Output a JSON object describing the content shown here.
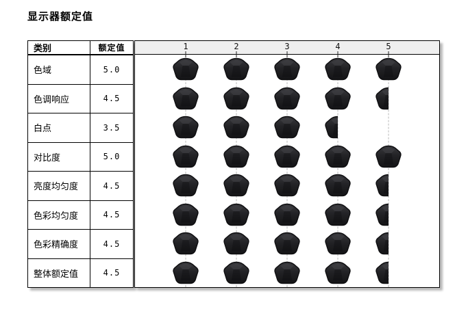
{
  "title": "显示器额定值",
  "table": {
    "headers": {
      "category": "类别",
      "rating": "额定值"
    },
    "rows": [
      {
        "label": "色域",
        "value": "5.0",
        "rating": 5.0
      },
      {
        "label": "色调响应",
        "value": "4.5",
        "rating": 4.5
      },
      {
        "label": "白点",
        "value": "3.5",
        "rating": 3.5
      },
      {
        "label": "对比度",
        "value": "5.0",
        "rating": 5.0
      },
      {
        "label": "亮度均匀度",
        "value": "4.5",
        "rating": 4.5
      },
      {
        "label": "色彩均匀度",
        "value": "4.5",
        "rating": 4.5
      },
      {
        "label": "色彩精确度",
        "value": "4.5",
        "rating": 4.5
      },
      {
        "label": "整体额定值",
        "value": "4.5",
        "rating": 4.5
      }
    ]
  },
  "scale": {
    "ticks": [
      "1",
      "2",
      "3",
      "4",
      "5"
    ],
    "min": 0,
    "max": 5
  },
  "icons": {
    "rating_marker": "gem-icon"
  },
  "colors": {
    "background": "#ffffff",
    "border": "#000000",
    "strip_bg": "#efefef",
    "guide_line": "#b9b9b9",
    "gem_dark": "#141416",
    "gem_light": "#39393d",
    "shadow": "#bdbdbd"
  },
  "chart_data": {
    "type": "table",
    "title": "显示器额定值",
    "categories": [
      "色域",
      "色调响应",
      "白点",
      "对比度",
      "亮度均匀度",
      "色彩均匀度",
      "色彩精确度",
      "整体额定值"
    ],
    "values": [
      5.0,
      4.5,
      3.5,
      5.0,
      4.5,
      4.5,
      4.5,
      4.5
    ],
    "xlabel": "",
    "ylabel": "",
    "xlim": [
      0,
      5
    ],
    "axis_ticks": [
      1,
      2,
      3,
      4,
      5
    ]
  }
}
